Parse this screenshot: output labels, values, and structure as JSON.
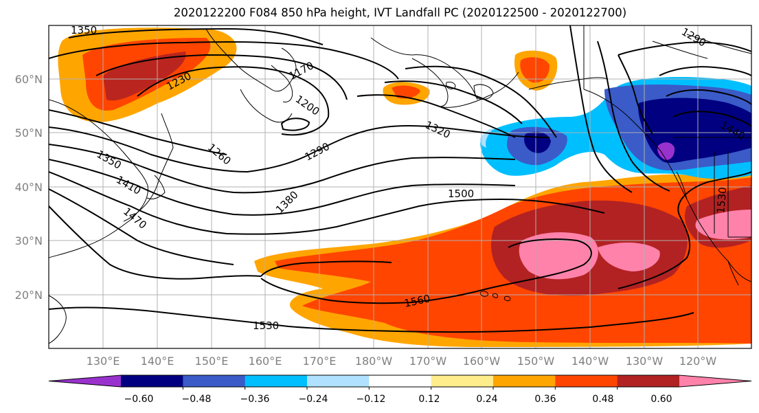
{
  "title": "2020122200 F084 850 hPa height, IVT Landfall PC (2020122500 - 2020122700)",
  "map": {
    "lon_labels": [
      "130°E",
      "140°E",
      "150°E",
      "160°E",
      "170°E",
      "180°W",
      "170°W",
      "160°W",
      "150°W",
      "140°W",
      "130°W",
      "120°W"
    ],
    "lat_labels": [
      "60°N",
      "50°N",
      "40°N",
      "30°N",
      "20°N"
    ],
    "contour_labels": [
      "1350",
      "1230",
      "1170",
      "1200",
      "1260",
      "1290",
      "1320",
      "1380",
      "1500",
      "1350",
      "1410",
      "1470",
      "1560",
      "1530",
      "1290",
      "1440",
      "1530"
    ]
  },
  "colorbar": {
    "tick_labels": [
      "−0.60",
      "−0.48",
      "−0.36",
      "−0.24",
      "−0.12",
      "0.12",
      "0.24",
      "0.36",
      "0.48",
      "0.60"
    ],
    "colors": [
      "#9932cc",
      "#000080",
      "#3a5bc8",
      "#00bfff",
      "#b0e2ff",
      "#ffffff",
      "#ffec8b",
      "#ffa500",
      "#ff4500",
      "#b22222",
      "#ff82ab"
    ]
  }
}
